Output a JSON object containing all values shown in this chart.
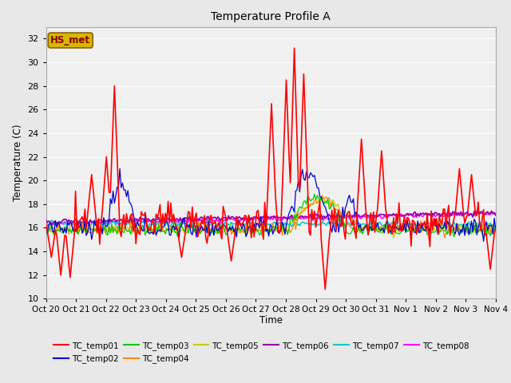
{
  "title": "Temperature Profile A",
  "xlabel": "Time",
  "ylabel": "Temperature (C)",
  "ylim": [
    10,
    33
  ],
  "yticks": [
    10,
    12,
    14,
    16,
    18,
    20,
    22,
    24,
    26,
    28,
    30,
    32
  ],
  "bg_color": "#e8e8e8",
  "plot_bg_color": "#f0f0f0",
  "annotation_text": "HS_met",
  "annotation_color": "#8b0000",
  "annotation_bg": "#d4b800",
  "series_colors": {
    "TC_temp01": "#ff0000",
    "TC_temp02": "#0000cc",
    "TC_temp03": "#00cc00",
    "TC_temp04": "#ff8800",
    "TC_temp05": "#cccc00",
    "TC_temp06": "#9900aa",
    "TC_temp07": "#00cccc",
    "TC_temp08": "#ff00ff"
  },
  "x_labels": [
    "Oct 20",
    "Oct 21",
    "Oct 22",
    "Oct 23",
    "Oct 24",
    "Oct 25",
    "Oct 26",
    "Oct 27",
    "Oct 28",
    "Oct 29",
    "Oct 30",
    "Oct 31",
    "Nov 1",
    "Nov 2",
    "Nov 3",
    "Nov 4"
  ],
  "n_points": 336,
  "figsize": [
    6.4,
    4.8
  ],
  "dpi": 100
}
